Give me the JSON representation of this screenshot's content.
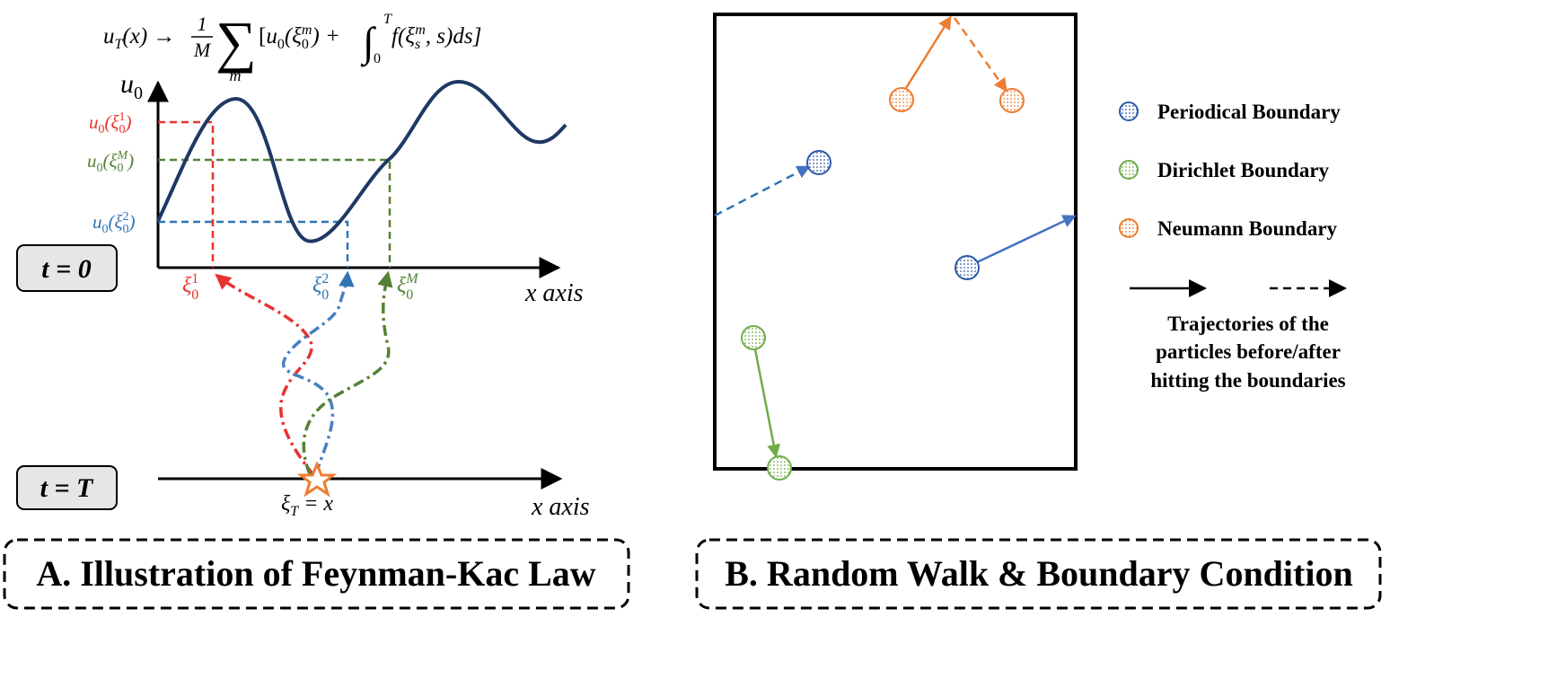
{
  "panel_a": {
    "formula": {
      "lhs_u": "u",
      "lhs_T": "T",
      "lhs_rest": "(x) → ",
      "frac_num": "1",
      "frac_den": "M",
      "sum": "∑",
      "sum_index": "m",
      "bracket_open": "[",
      "u0": "u",
      "u0_sub": "0",
      "xi": "(ξ",
      "xi_sub": "0",
      "xi_sup": "m",
      "plus": ") + ",
      "integral": "∫",
      "int_upper": "T",
      "int_lower": "0",
      "integrand_f": "f(ξ",
      "integrand_sub": "s",
      "integrand_sup": "m",
      "integrand_rest": ", s)ds]"
    },
    "axis_u0": {
      "base": "u",
      "sub": "0"
    },
    "y_labels": [
      {
        "base": "u",
        "sub": "0",
        "open": "(ξ",
        "xi_sub": "0",
        "xi_sup": "1",
        "close": ")",
        "color": "#e8322f"
      },
      {
        "base": "u",
        "sub": "0",
        "open": "(ξ",
        "xi_sub": "0",
        "xi_sup": "M",
        "close": ")",
        "color": "#548235"
      },
      {
        "base": "u",
        "sub": "0",
        "open": "(ξ",
        "xi_sub": "0",
        "xi_sup": "2",
        "close": ")",
        "color": "#2e75b6"
      }
    ],
    "x_labels": [
      {
        "base": "ξ",
        "sub": "0",
        "sup": "1",
        "color": "#e8322f"
      },
      {
        "base": "ξ",
        "sub": "0",
        "sup": "2",
        "color": "#2e75b6"
      },
      {
        "base": "ξ",
        "sub": "0",
        "sup": "M",
        "color": "#548235"
      }
    ],
    "x_axis_top": "x axis",
    "x_axis_bottom": "x axis",
    "xi_T": {
      "base": "ξ",
      "sub": "T",
      "rest": " = x"
    },
    "t0_label": "t = 0",
    "tT_label": "t = T",
    "caption": "A. Illustration of Feynman-Kac Law"
  },
  "panel_b": {
    "legend": [
      {
        "label": "Periodical Boundary",
        "color": "#2e5aa8"
      },
      {
        "label": "Dirichlet Boundary",
        "color": "#70ad47"
      },
      {
        "label": "Neumann Boundary",
        "color": "#ed7d31"
      }
    ],
    "trajectory_note": [
      "Trajectories of the",
      "particles before/after",
      "hitting the boundaries"
    ],
    "caption": "B. Random Walk & Boundary Condition"
  },
  "colors": {
    "curve": "#1f3864",
    "red": "#e8322f",
    "blue": "#2e75b6",
    "green": "#548235",
    "orange": "#ed7d31",
    "periodical": "#2e5aa8",
    "dirichlet": "#70ad47",
    "neumann": "#ed7d31"
  }
}
